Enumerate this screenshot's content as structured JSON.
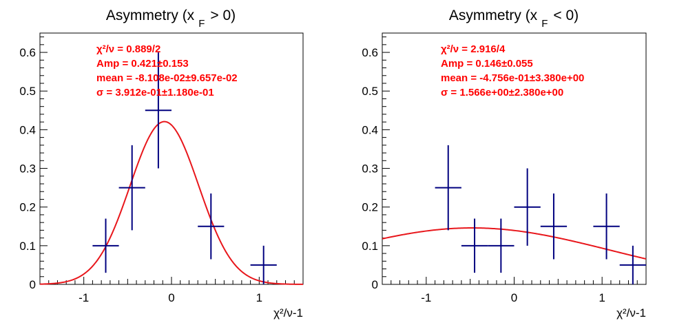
{
  "chart_data": [
    {
      "type": "scatter",
      "title_main": "Asymmetry (x",
      "title_sub": "F",
      "title_tail": "> 0)",
      "xlabel": "χ²/ν-1",
      "ylabel": "",
      "xlim": [
        -1.5,
        1.5
      ],
      "ylim": [
        0,
        0.65
      ],
      "x_ticks": [
        -1,
        0,
        1
      ],
      "x_tick_labels": [
        "-1",
        "0",
        "1"
      ],
      "y_ticks": [
        0,
        0.1,
        0.2,
        0.3,
        0.4,
        0.5,
        0.6
      ],
      "y_tick_labels": [
        "0",
        "0.1",
        "0.2",
        "0.3",
        "0.4",
        "0.5",
        "0.6"
      ],
      "grid": false,
      "stats": [
        "χ²/ν = 0.889/2",
        "Amp = 0.421±0.153",
        "mean = -8.108e-02±9.657e-02",
        "σ = 3.912e-01±1.180e-01"
      ],
      "fit": {
        "function": "gaussian",
        "amp": 0.421,
        "mean": -0.08108,
        "sigma": 0.3912,
        "color": "#e8161b"
      },
      "points": [
        {
          "x": -0.75,
          "xerr": 0.15,
          "y": 0.1,
          "yerr": 0.07
        },
        {
          "x": -0.45,
          "xerr": 0.15,
          "y": 0.25,
          "yerr": 0.11
        },
        {
          "x": -0.15,
          "xerr": 0.15,
          "y": 0.45,
          "yerr": 0.15
        },
        {
          "x": 0.45,
          "xerr": 0.15,
          "y": 0.15,
          "yerr": 0.085
        },
        {
          "x": 1.05,
          "xerr": 0.15,
          "y": 0.05,
          "yerr": 0.05
        }
      ],
      "point_color": "#00007f"
    },
    {
      "type": "scatter",
      "title_main": "Asymmetry (x",
      "title_sub": "F",
      "title_tail": "< 0)",
      "xlabel": "χ²/ν-1",
      "ylabel": "",
      "xlim": [
        -1.5,
        1.5
      ],
      "ylim": [
        0,
        0.65
      ],
      "x_ticks": [
        -1,
        0,
        1
      ],
      "x_tick_labels": [
        "-1",
        "0",
        "1"
      ],
      "y_ticks": [
        0,
        0.1,
        0.2,
        0.3,
        0.4,
        0.5,
        0.6
      ],
      "y_tick_labels": [
        "0",
        "0.1",
        "0.2",
        "0.3",
        "0.4",
        "0.5",
        "0.6"
      ],
      "grid": false,
      "stats": [
        "χ²/ν = 2.916/4",
        "Amp = 0.146±0.055",
        "mean = -4.756e-01±3.380e+00",
        "σ = 1.566e+00±2.380e+00"
      ],
      "fit": {
        "function": "gaussian",
        "amp": 0.146,
        "mean": -0.4756,
        "sigma": 1.566,
        "color": "#e8161b"
      },
      "points": [
        {
          "x": -0.75,
          "xerr": 0.15,
          "y": 0.25,
          "yerr": 0.11
        },
        {
          "x": -0.45,
          "xerr": 0.15,
          "y": 0.1,
          "yerr": 0.07
        },
        {
          "x": -0.15,
          "xerr": 0.15,
          "y": 0.1,
          "yerr": 0.07
        },
        {
          "x": 0.15,
          "xerr": 0.15,
          "y": 0.2,
          "yerr": 0.1
        },
        {
          "x": 0.45,
          "xerr": 0.15,
          "y": 0.15,
          "yerr": 0.085
        },
        {
          "x": 1.05,
          "xerr": 0.15,
          "y": 0.15,
          "yerr": 0.085
        },
        {
          "x": 1.35,
          "xerr": 0.15,
          "y": 0.05,
          "yerr": 0.05
        }
      ],
      "point_color": "#00007f"
    }
  ]
}
